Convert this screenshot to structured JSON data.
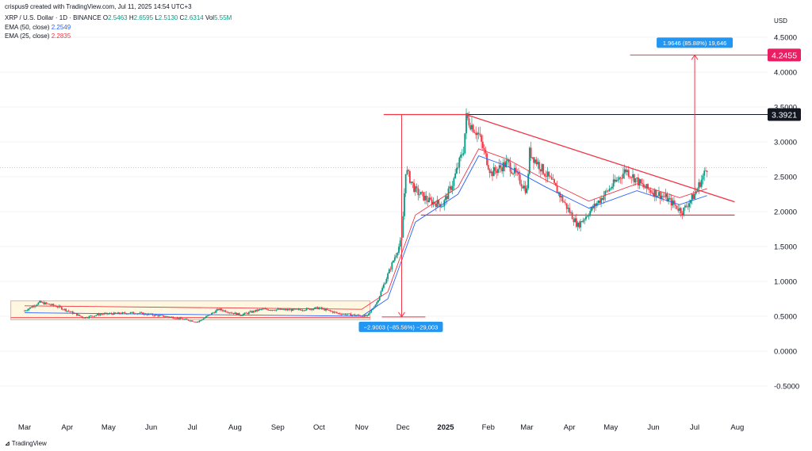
{
  "header": {
    "credit": "crispus9 created with TradingView.com, Jul 11, 2025 14:54 UTC+3",
    "symbol": "XRP / U.S. Dollar · 1D · BINANCE",
    "o_label": "O",
    "o_value": "2.5463",
    "h_label": "H",
    "h_value": "2.6595",
    "l_label": "L",
    "l_value": "2.5130",
    "c_label": "C",
    "c_value": "2.6314",
    "vol_label": "Vol",
    "vol_value": "5.55M",
    "ema50_label": "EMA (50, close)",
    "ema50_value": "2.2549",
    "ema25_label": "EMA (25, close)",
    "ema25_value": "2.2835"
  },
  "currency": "USD",
  "footer": {
    "brand": "TradingView"
  },
  "colors": {
    "up": "#089981",
    "down": "#f23645",
    "ema50": "#2962ff",
    "ema25": "#f23645",
    "annotation": "#f23645",
    "measure_badge": "#2196f3",
    "price_badge": "#e91e63",
    "resistance": "#131722"
  },
  "chart_data": {
    "type": "candlestick",
    "title": "XRP / U.S. Dollar · 1D · BINANCE",
    "x_ticks": [
      "Mar",
      "Apr",
      "May",
      "Jun",
      "Jul",
      "Aug",
      "Sep",
      "Oct",
      "Nov",
      "Dec",
      "2025",
      "Feb",
      "Mar",
      "Apr",
      "May",
      "Jun",
      "Jul",
      "Aug"
    ],
    "y_ticks": [
      "4.5000",
      "4.0000",
      "3.5000",
      "3.0000",
      "2.5000",
      "2.0000",
      "1.5000",
      "1.0000",
      "0.5000",
      "0.0000",
      "-0.5000"
    ],
    "ylim": [
      -0.75,
      4.75
    ],
    "price_path": [
      [
        "2024-03-01",
        0.58
      ],
      [
        "2024-03-12",
        0.7
      ],
      [
        "2024-03-25",
        0.64
      ],
      [
        "2024-04-13",
        0.48
      ],
      [
        "2024-04-25",
        0.53
      ],
      [
        "2024-05-20",
        0.55
      ],
      [
        "2024-06-15",
        0.49
      ],
      [
        "2024-07-05",
        0.42
      ],
      [
        "2024-07-20",
        0.6
      ],
      [
        "2024-08-05",
        0.52
      ],
      [
        "2024-08-20",
        0.6
      ],
      [
        "2024-09-15",
        0.59
      ],
      [
        "2024-10-01",
        0.62
      ],
      [
        "2024-10-15",
        0.54
      ],
      [
        "2024-11-05",
        0.5
      ],
      [
        "2024-11-12",
        0.7
      ],
      [
        "2024-11-20",
        1.1
      ],
      [
        "2024-11-30",
        1.6
      ],
      [
        "2024-12-03",
        2.6
      ],
      [
        "2024-12-10",
        2.3
      ],
      [
        "2024-12-20",
        2.15
      ],
      [
        "2024-12-30",
        2.1
      ],
      [
        "2025-01-06",
        2.4
      ],
      [
        "2025-01-14",
        2.9
      ],
      [
        "2025-01-16",
        3.35
      ],
      [
        "2025-01-25",
        3.1
      ],
      [
        "2025-02-03",
        2.55
      ],
      [
        "2025-02-15",
        2.7
      ],
      [
        "2025-03-01",
        2.3
      ],
      [
        "2025-03-03",
        2.85
      ],
      [
        "2025-03-20",
        2.4
      ],
      [
        "2025-04-07",
        1.8
      ],
      [
        "2025-04-20",
        2.1
      ],
      [
        "2025-05-12",
        2.6
      ],
      [
        "2025-05-25",
        2.35
      ],
      [
        "2025-06-10",
        2.2
      ],
      [
        "2025-06-22",
        2.0
      ],
      [
        "2025-07-01",
        2.25
      ],
      [
        "2025-07-10",
        2.63
      ]
    ],
    "ema_lag": [
      [
        "2024-03-01",
        0.6
      ],
      [
        "2024-11-01",
        0.55
      ],
      [
        "2024-11-20",
        0.8
      ],
      [
        "2024-12-10",
        1.9
      ],
      [
        "2025-01-10",
        2.3
      ],
      [
        "2025-01-25",
        2.85
      ],
      [
        "2025-02-15",
        2.7
      ],
      [
        "2025-03-15",
        2.4
      ],
      [
        "2025-04-15",
        2.1
      ],
      [
        "2025-05-20",
        2.35
      ],
      [
        "2025-06-20",
        2.15
      ],
      [
        "2025-07-10",
        2.28
      ]
    ],
    "annotations": {
      "range_box": {
        "x0": "2024-02-20",
        "x1": "2024-11-07",
        "y0": 0.45,
        "y1": 0.72
      },
      "range_low": 0.48,
      "decline_measure": {
        "x": "2024-11-30",
        "from": 3.39,
        "to": 0.49,
        "label": "−2.9003 (−85.56%) −29,003"
      },
      "horizontal_support": {
        "x0": "2024-12-14",
        "x1": "2025-07-30",
        "y": 1.95
      },
      "descending_trendline": {
        "x0": "2025-01-16",
        "y0": 3.39,
        "x1": "2025-07-30",
        "y1": 2.14
      },
      "resistance": 3.3921,
      "resistance_label": "3.3921",
      "target": 4.2455,
      "target_label": "4.2455",
      "rise_measure": {
        "x": "2025-07-01",
        "from": 2.3,
        "to": 4.2455,
        "label": "1.9646 (85.88%) 19,646"
      },
      "current_price_level": 2.63
    }
  }
}
